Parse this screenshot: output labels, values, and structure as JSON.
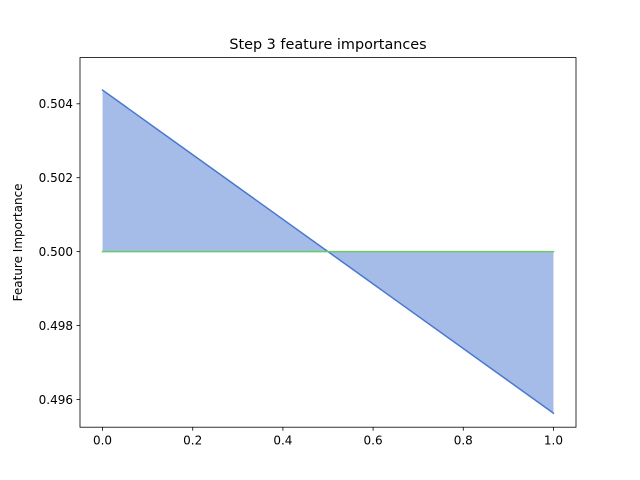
{
  "chart_data": {
    "type": "line",
    "title": "Step 3 feature importances",
    "xlabel": "",
    "ylabel": "Feature Importance",
    "xlim": [
      -0.05,
      1.05
    ],
    "ylim": [
      0.49525,
      0.50525
    ],
    "xticks": [
      0.0,
      0.2,
      0.4,
      0.6,
      0.8,
      1.0
    ],
    "xtick_labels": [
      "0.0",
      "0.2",
      "0.4",
      "0.6",
      "0.8",
      "1.0"
    ],
    "yticks": [
      0.496,
      0.498,
      0.5,
      0.502,
      0.504
    ],
    "ytick_labels": [
      "0.496",
      "0.498",
      "0.500",
      "0.502",
      "0.504"
    ],
    "grid": false,
    "legend": "none",
    "fill_between": {
      "color": "#a5bbe8",
      "between": [
        "series-0",
        "series-1"
      ]
    },
    "series": [
      {
        "x": [
          0.0,
          1.0
        ],
        "y": [
          0.50437,
          0.49563
        ],
        "color": "#4878cf"
      },
      {
        "x": [
          0.0,
          1.0
        ],
        "y": [
          0.5,
          0.5
        ],
        "color": "#6acc65"
      }
    ]
  }
}
